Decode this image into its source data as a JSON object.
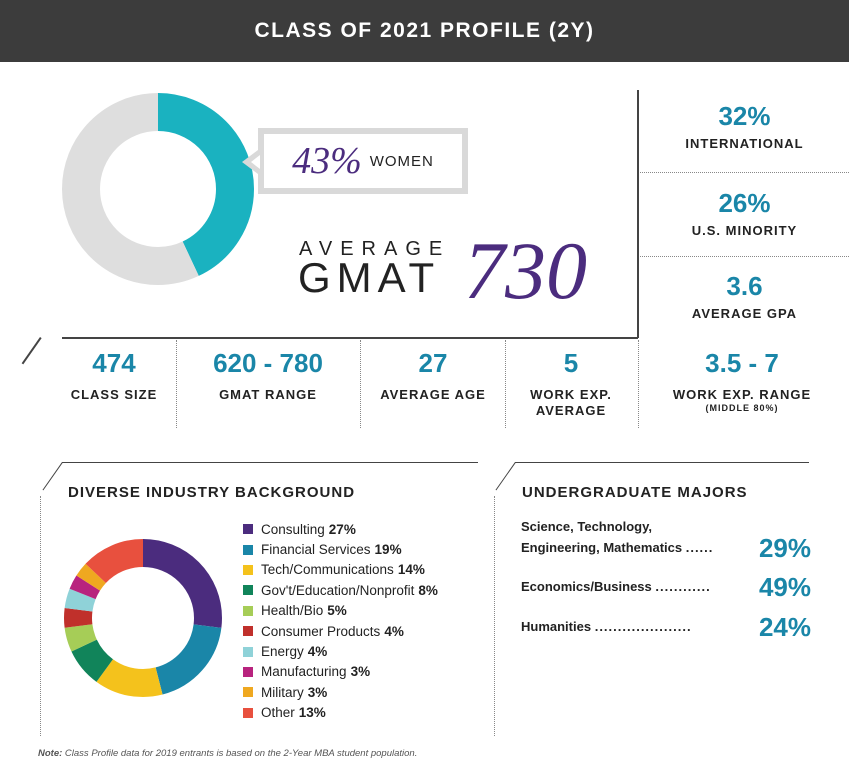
{
  "header": {
    "title": "CLASS OF 2021 PROFILE (2Y)"
  },
  "women": {
    "pct": "43%",
    "label": "WOMEN",
    "value": 43,
    "colors": {
      "women": "#1ab2c0",
      "rest": "#dedede"
    }
  },
  "gmat": {
    "word1": "AVERAGE",
    "word2": "GMAT",
    "value": "730"
  },
  "right_stats": [
    {
      "value": "32%",
      "label": "INTERNATIONAL"
    },
    {
      "value": "26%",
      "label": "U.S. MINORITY"
    },
    {
      "value": "3.6",
      "label": "AVERAGE GPA"
    }
  ],
  "row_stats": [
    {
      "value": "474",
      "label": "CLASS SIZE"
    },
    {
      "value": "620 - 780",
      "label": "GMAT RANGE"
    },
    {
      "value": "27",
      "label": "AVERAGE AGE"
    },
    {
      "value": "5",
      "label": "WORK EXP.",
      "label2": "AVERAGE"
    },
    {
      "value": "3.5 - 7",
      "label": "WORK EXP. RANGE",
      "sub": "(MIDDLE 80%)"
    }
  ],
  "industry": {
    "heading": "DIVERSE INDUSTRY BACKGROUND"
  },
  "majors": {
    "heading": "UNDERGRADUATE MAJORS",
    "items": [
      {
        "name1": "Science, Technology,",
        "name2": "Engineering, Mathematics",
        "dots": "......",
        "pct": "29%"
      },
      {
        "name1": "Economics/Business",
        "dots": "............",
        "pct": "49%"
      },
      {
        "name1": "Humanities",
        "dots": ".....................",
        "pct": "24%"
      }
    ]
  },
  "note": {
    "lead": "Note:",
    "text": " Class Profile data for 2019 entrants is based on the 2-Year MBA student population."
  },
  "chart_data": [
    {
      "type": "pie",
      "categories": [
        "Women",
        "Other"
      ],
      "values": [
        43,
        57
      ],
      "colors": [
        "#1ab2c0",
        "#dedede"
      ]
    },
    {
      "type": "pie",
      "categories": [
        "Consulting",
        "Financial Services",
        "Tech/Communications",
        "Gov't/Education/Nonprofit",
        "Health/Bio",
        "Consumer Products",
        "Energy",
        "Manufacturing",
        "Military",
        "Other"
      ],
      "values": [
        27,
        19,
        14,
        8,
        5,
        4,
        4,
        3,
        3,
        13
      ],
      "labels": [
        "27%",
        "19%",
        "14%",
        "8%",
        "5%",
        "4%",
        "4%",
        "3%",
        "3%",
        "13%"
      ],
      "colors": [
        "#4b2c7e",
        "#1a86a8",
        "#f4c21c",
        "#11845a",
        "#a6cd57",
        "#c0302b",
        "#8fd2d8",
        "#b8237e",
        "#efa820",
        "#e8503e"
      ]
    }
  ]
}
